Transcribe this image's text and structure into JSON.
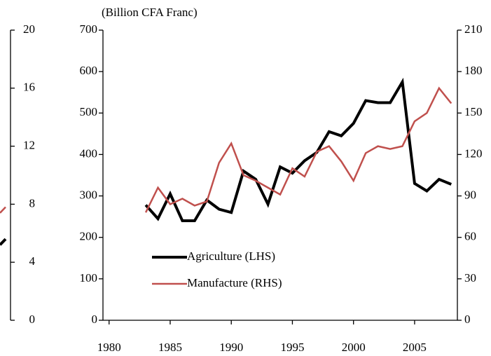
{
  "chart_data": [
    {
      "type": "line",
      "y2lim": [
        0,
        20
      ],
      "y2ticks": [
        0,
        4,
        8,
        12,
        16,
        20
      ],
      "series": [
        {
          "color": "#000000",
          "values": [
            5.2,
            5.6
          ]
        },
        {
          "color": "#c0504d",
          "values": [
            7.4,
            7.8
          ]
        }
      ]
    },
    {
      "type": "line",
      "title": "(Billion CFA Franc)",
      "x": [
        1983,
        1984,
        1985,
        1986,
        1987,
        1988,
        1989,
        1990,
        1991,
        1992,
        1993,
        1994,
        1995,
        1996,
        1997,
        1998,
        1999,
        2000,
        2001,
        2002,
        2003,
        2004,
        2005,
        2006,
        2007,
        2008
      ],
      "xlim": [
        1979.5,
        2008.5
      ],
      "xticks": [
        1980,
        1985,
        1990,
        1995,
        2000,
        2005
      ],
      "ylim": [
        0,
        700
      ],
      "yticks": [
        0,
        100,
        200,
        300,
        400,
        500,
        600,
        700
      ],
      "y2lim": [
        0,
        210
      ],
      "y2ticks": [
        0,
        30,
        60,
        90,
        120,
        150,
        180,
        210
      ],
      "legend": "lower-left",
      "series": [
        {
          "name": "Agriculture  (LHS)",
          "color": "#000000",
          "axis": "y",
          "values": [
            278,
            245,
            305,
            240,
            240,
            290,
            268,
            260,
            360,
            340,
            280,
            370,
            355,
            385,
            405,
            455,
            445,
            475,
            530,
            525,
            525,
            575,
            330,
            312,
            340,
            328
          ]
        },
        {
          "name": "Manufacture (RHS)",
          "color": "#c0504d",
          "axis": "y2",
          "values": [
            78,
            96,
            84,
            88,
            83,
            86,
            114,
            128,
            105,
            101,
            96,
            91,
            110,
            104,
            122,
            126,
            115,
            101,
            121,
            126,
            124,
            126,
            144,
            150,
            168,
            157
          ]
        }
      ]
    }
  ]
}
